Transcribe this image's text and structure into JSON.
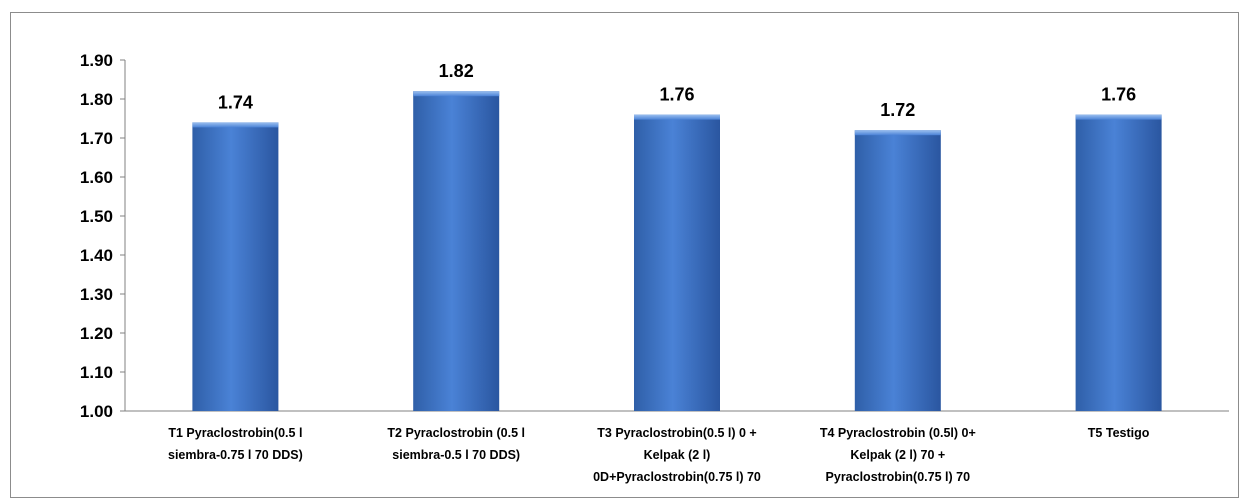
{
  "chart_data": {
    "type": "bar",
    "title": "",
    "xlabel": "",
    "ylabel": "",
    "ylim": [
      1.0,
      1.9
    ],
    "yticks": [
      "1.00",
      "1.10",
      "1.20",
      "1.30",
      "1.40",
      "1.50",
      "1.60",
      "1.70",
      "1.80",
      "1.90"
    ],
    "grid": false,
    "legend": "none",
    "bar_color": "#3a6fc4",
    "categories": [
      [
        "T1  Pyraclostrobin(0.5 l",
        "siembra-0.75 l 70 DDS)"
      ],
      [
        "T2 Pyraclostrobin (0.5 l",
        "siembra-0.5 l 70 DDS)"
      ],
      [
        "T3 Pyraclostrobin(0.5 l) 0 +",
        "Kelpak  (2 l)",
        "0D+Pyraclostrobin(0.75 l) 70"
      ],
      [
        "T4  Pyraclostrobin (0.5l) 0+",
        "Kelpak (2 l) 70 +",
        "Pyraclostrobin(0.75 l) 70"
      ],
      [
        "T5  Testigo"
      ]
    ],
    "values": [
      1.74,
      1.82,
      1.76,
      1.72,
      1.76
    ],
    "data_labels": [
      "1.74",
      "1.82",
      "1.76",
      "1.72",
      "1.76"
    ]
  }
}
